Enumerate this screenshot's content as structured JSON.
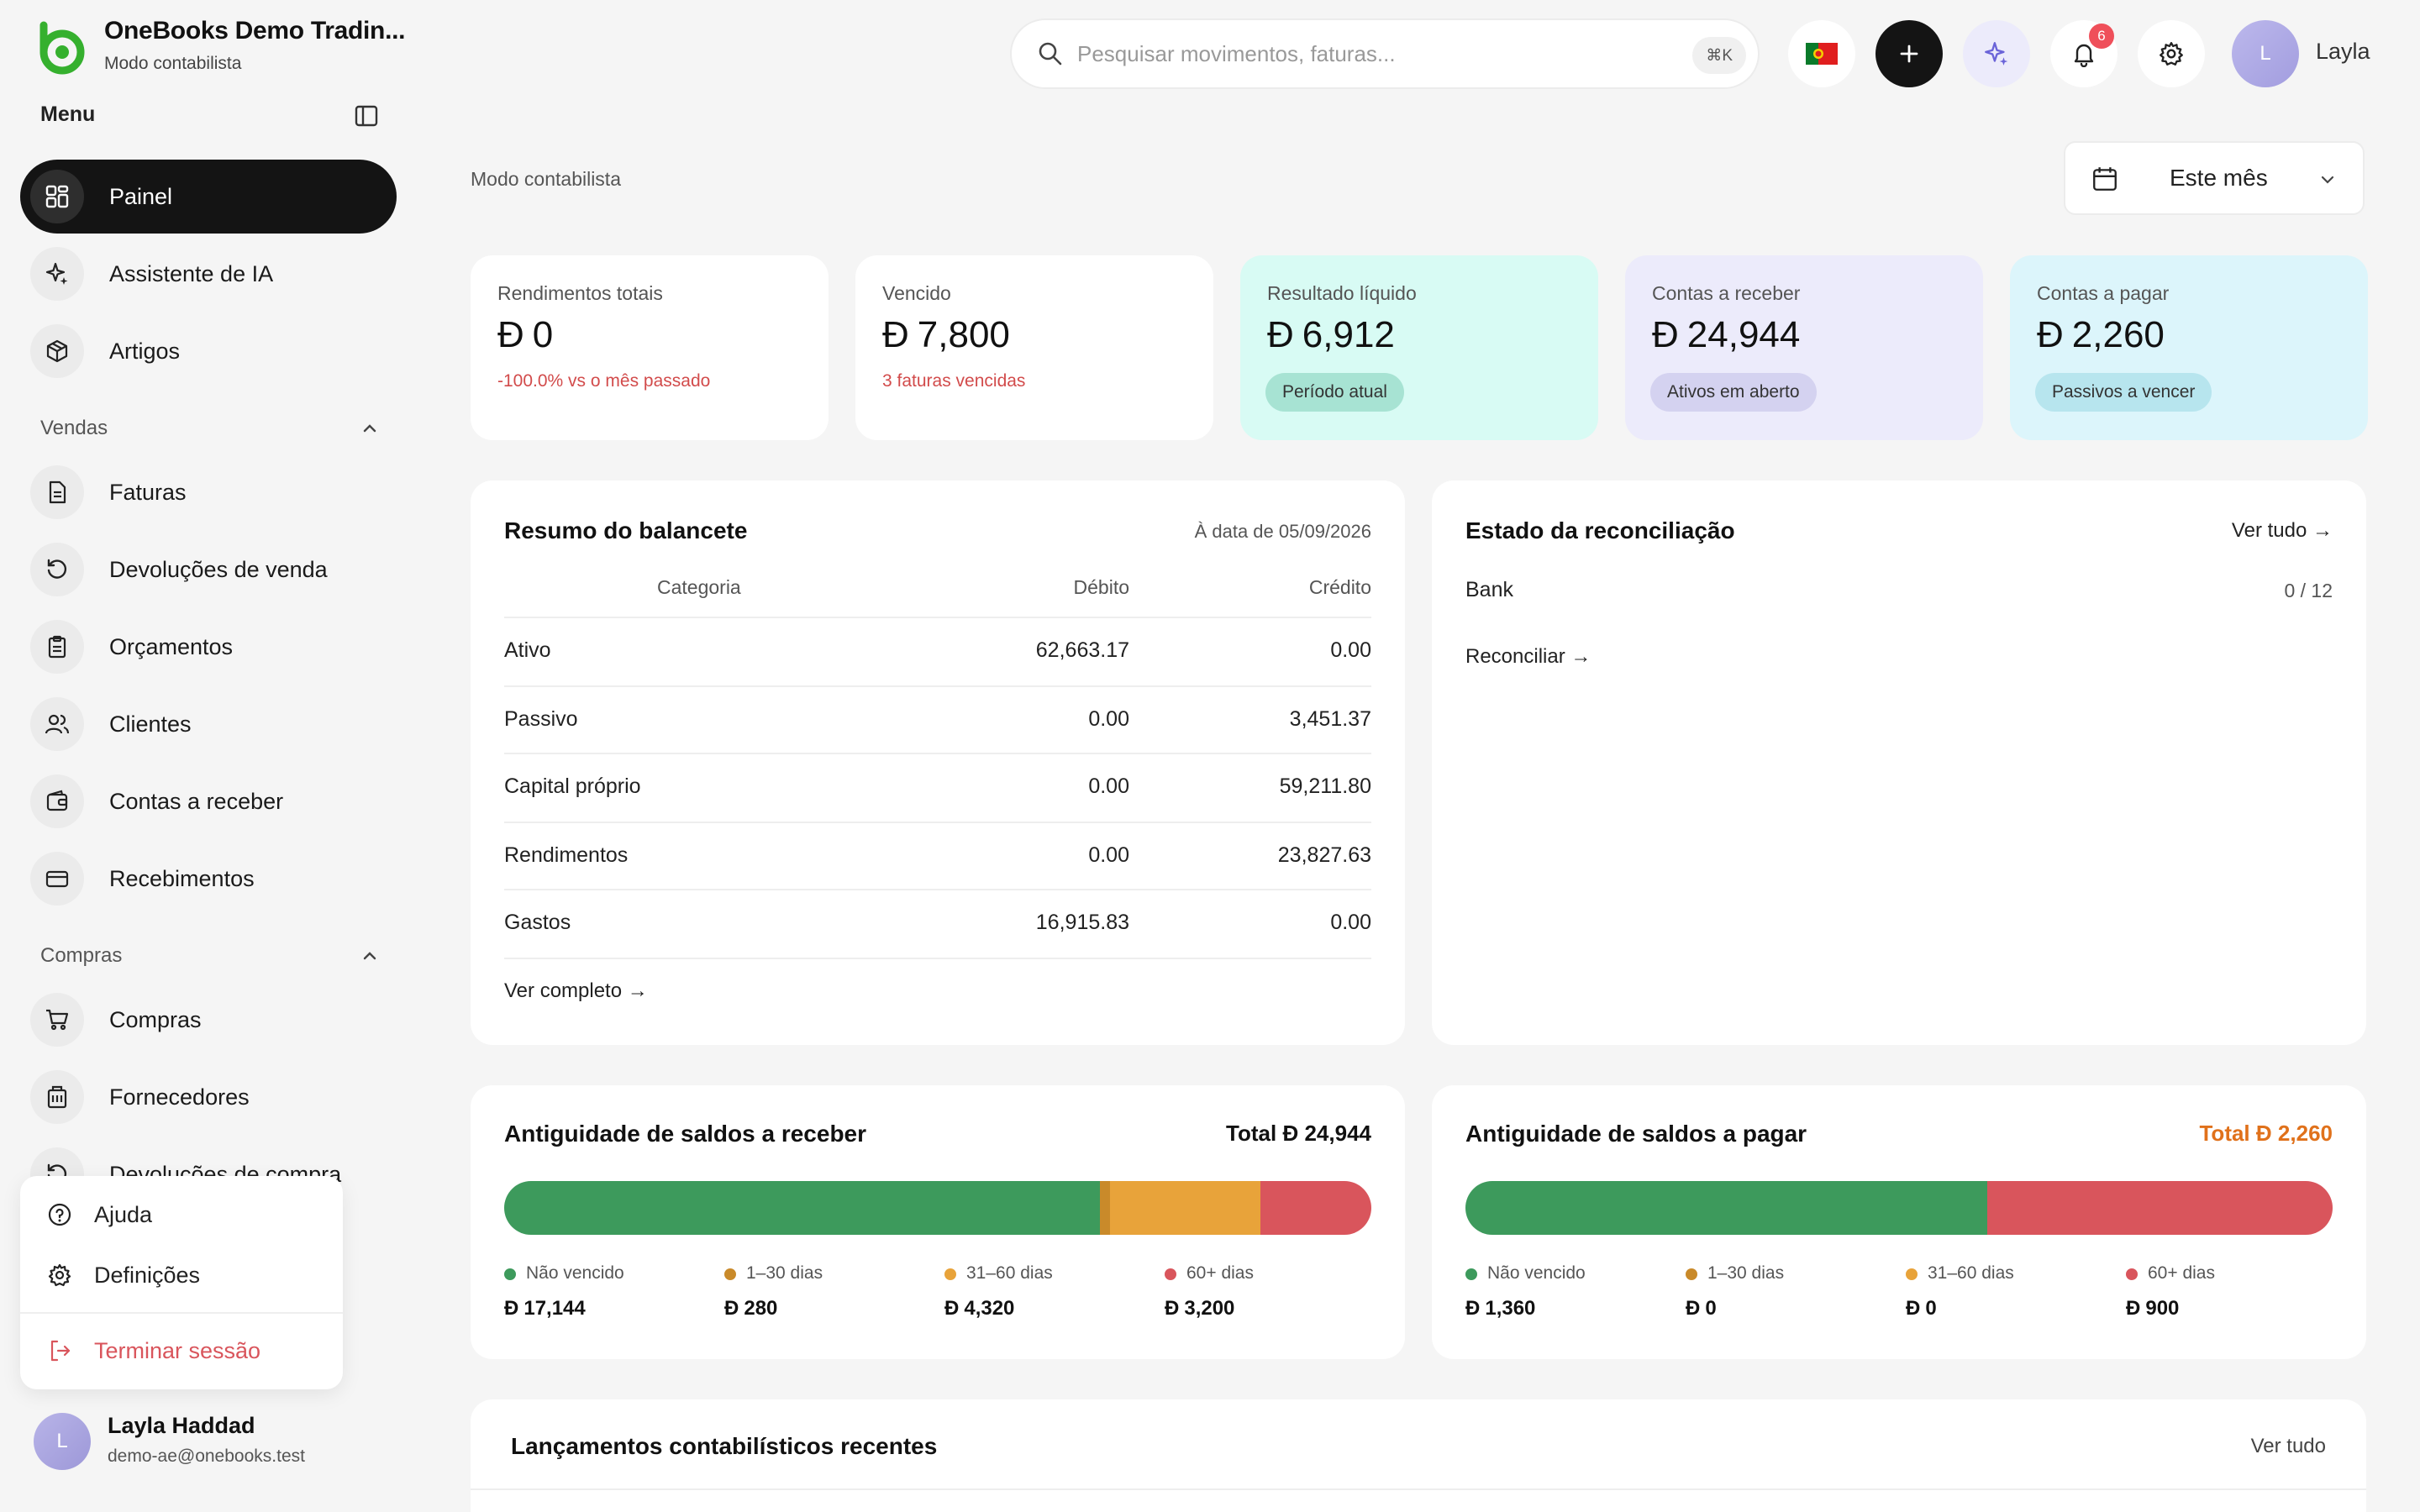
{
  "brand": {
    "name": "OneBooks Demo Tradin...",
    "subtitle": "Modo contabilista"
  },
  "sidebar": {
    "menu_label": "Menu",
    "items": [
      {
        "label": "Painel",
        "icon": "dashboard-icon",
        "active": true
      },
      {
        "label": "Assistente de IA",
        "icon": "sparkles-icon"
      },
      {
        "label": "Artigos",
        "icon": "box-icon"
      }
    ],
    "sections": [
      {
        "label": "Vendas",
        "items": [
          {
            "label": "Faturas",
            "icon": "invoice-icon"
          },
          {
            "label": "Devoluções de venda",
            "icon": "return-icon"
          },
          {
            "label": "Orçamentos",
            "icon": "clipboard-icon"
          },
          {
            "label": "Clientes",
            "icon": "users-icon"
          },
          {
            "label": "Contas a receber",
            "icon": "wallet-icon"
          },
          {
            "label": "Recebimentos",
            "icon": "card-icon"
          }
        ]
      },
      {
        "label": "Compras",
        "items": [
          {
            "label": "Compras",
            "icon": "cart-icon"
          },
          {
            "label": "Fornecedores",
            "icon": "building-icon"
          },
          {
            "label": "Devoluções de compra",
            "icon": "return-icon"
          }
        ]
      }
    ],
    "popup": {
      "help": "Ajuda",
      "settings": "Definições",
      "logout": "Terminar sessão"
    },
    "user": {
      "initial": "L",
      "name": "Layla Haddad",
      "email": "demo-ae@onebooks.test"
    }
  },
  "topbar": {
    "search_placeholder": "Pesquisar movimentos, faturas...",
    "shortcut": "⌘K",
    "notifications": "6",
    "user_initial": "L",
    "user_name": "Layla"
  },
  "main": {
    "breadcrumb": "Modo contabilista",
    "period": "Este mês"
  },
  "kpis": [
    {
      "title": "Rendimentos totais",
      "value": "0",
      "sub": "-100.0% vs o mês passado"
    },
    {
      "title": "Vencido",
      "value": "7,800",
      "sub": "3 faturas vencidas"
    },
    {
      "title": "Resultado líquido",
      "value": "6,912",
      "pill": "Período atual"
    },
    {
      "title": "Contas a receber",
      "value": "24,944",
      "pill": "Ativos em aberto"
    },
    {
      "title": "Contas a pagar",
      "value": "2,260",
      "pill": "Passivos a vencer"
    }
  ],
  "balance": {
    "title": "Resumo do balancete",
    "date": "À data de 05/09/2026",
    "headers": {
      "category": "Categoria",
      "debit": "Débito",
      "credit": "Crédito"
    },
    "rows": [
      {
        "category": "Ativo",
        "debit": "62,663.17",
        "credit": "0.00"
      },
      {
        "category": "Passivo",
        "debit": "0.00",
        "credit": "3,451.37"
      },
      {
        "category": "Capital próprio",
        "debit": "0.00",
        "credit": "59,211.80"
      },
      {
        "category": "Rendimentos",
        "debit": "0.00",
        "credit": "23,827.63"
      },
      {
        "category": "Gastos",
        "debit": "16,915.83",
        "credit": "0.00"
      }
    ],
    "link": "Ver completo →"
  },
  "reconciliation": {
    "title": "Estado da reconciliação",
    "link": "Ver tudo →",
    "account": "Bank",
    "progress": "0 / 12",
    "action": "Reconciliar →"
  },
  "receivables": {
    "title": "Antiguidade de saldos a receber",
    "total_label": "Total",
    "total": "24,944",
    "buckets": [
      {
        "label": "Não vencido",
        "value": "17,144",
        "amount": 17144
      },
      {
        "label": "1–30 dias",
        "value": "280",
        "amount": 280
      },
      {
        "label": "31–60 dias",
        "value": "4,320",
        "amount": 4320
      },
      {
        "label": "60+ dias",
        "value": "3,200",
        "amount": 3200
      }
    ]
  },
  "payables": {
    "title": "Antiguidade de saldos a pagar",
    "total_label": "Total",
    "total": "2,260",
    "buckets": [
      {
        "label": "Não vencido",
        "value": "1,360",
        "amount": 1360
      },
      {
        "label": "1–30 dias",
        "value": "0",
        "amount": 0
      },
      {
        "label": "31–60 dias",
        "value": "0",
        "amount": 0
      },
      {
        "label": "60+ dias",
        "value": "900",
        "amount": 900
      }
    ]
  },
  "journal": {
    "title": "Lançamentos contabilísticos recentes",
    "link": "Ver tudo"
  },
  "colors": {
    "green": "#3d9a5c",
    "brown": "#c98a2a",
    "orange": "#e8a33a",
    "red": "#d9555c",
    "kpi_teal": "#d8fbf4",
    "kpi_lavender": "#ecebfb",
    "kpi_cyan": "#dcf5fb",
    "accent_orange": "#e0711b"
  }
}
